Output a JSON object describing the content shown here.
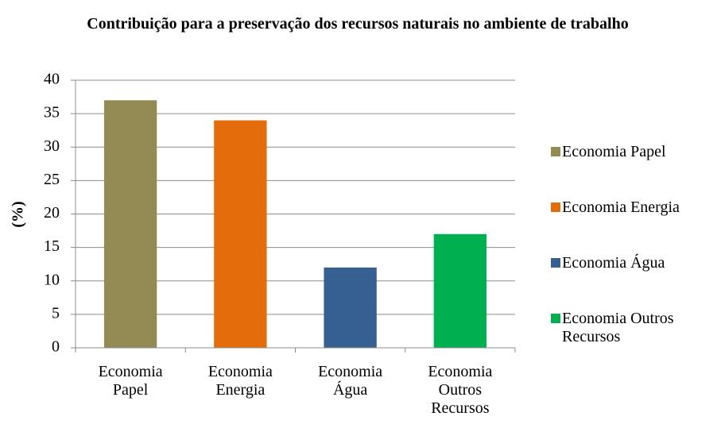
{
  "chart_data": {
    "type": "bar",
    "title": "Contribuição para a preservação dos recursos naturais no ambiente de trabalho",
    "ylabel": "(%)",
    "categories": [
      "Economia Papel",
      "Economia Energia",
      "Economia Água",
      "Economia Outros Recursos"
    ],
    "values": [
      37,
      34,
      12,
      17
    ],
    "colors": [
      "#948a54",
      "#e46c0a",
      "#376092",
      "#00b050"
    ],
    "ylim": [
      0,
      40
    ],
    "yticks": [
      0,
      5,
      10,
      15,
      20,
      25,
      30,
      35,
      40
    ],
    "grid": true,
    "legend": "right"
  }
}
